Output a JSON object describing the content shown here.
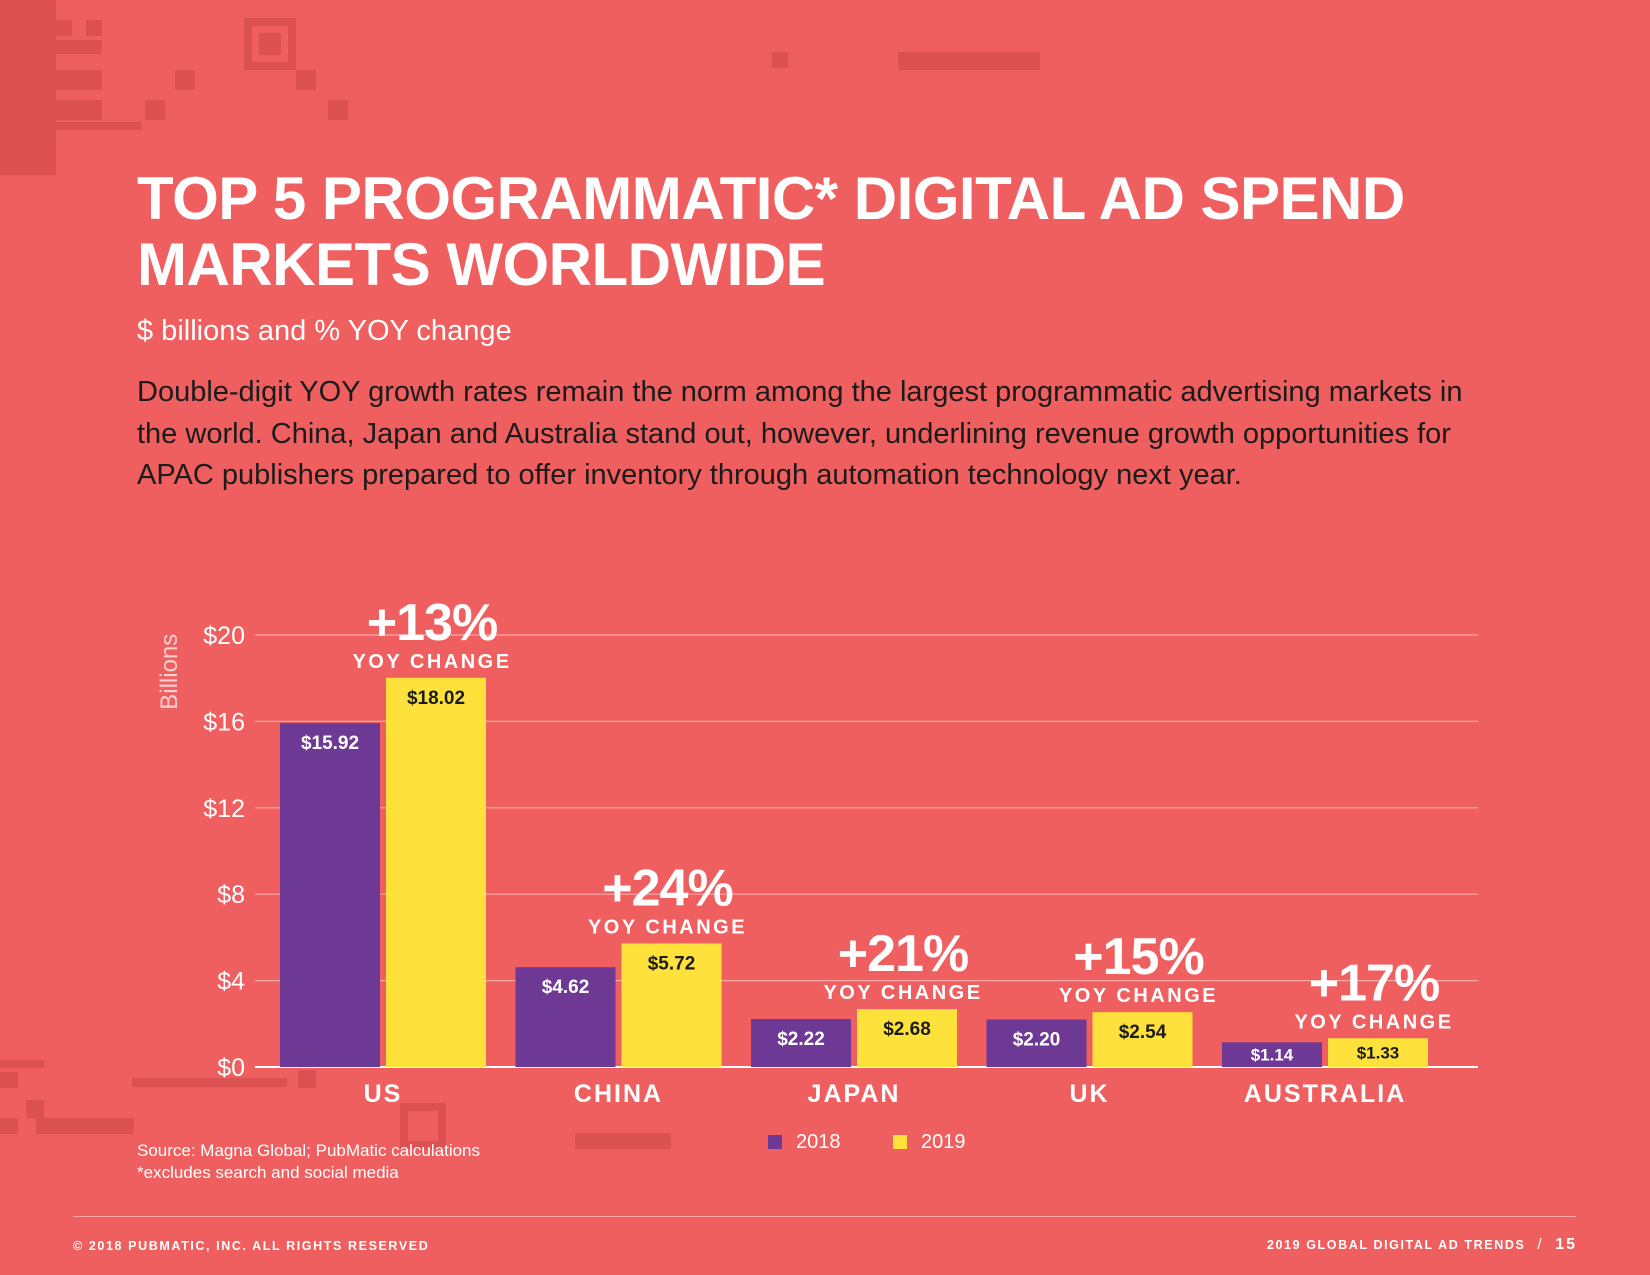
{
  "page": {
    "title": "TOP 5 PROGRAMMATIC* DIGITAL AD SPEND MARKETS WORLDWIDE",
    "subtitle": "$ billions and % YOY change",
    "description": "Double-digit YOY growth rates remain the norm among the largest programmatic advertising markets in the world. China, Japan and Australia stand out, however, underlining revenue growth opportunities for APAC publishers prepared to offer inventory through automation technology next year.",
    "source": "Source: Magna Global; PubMatic calculations",
    "footnote": "*excludes search and social media",
    "copyright": "© 2018 PUBMATIC, INC. ALL RIGHTS RESERVED",
    "report_name": "2019 GLOBAL DIGITAL AD TRENDS",
    "separator": "/",
    "page_number": "15"
  },
  "colors": {
    "background": "#f05f5f",
    "series_2018": "#6e3895",
    "series_2019": "#ffe13b",
    "text_dark": "#1b1b1b",
    "grid": "#f8a9a9"
  },
  "chart_data": {
    "type": "bar",
    "categories": [
      "US",
      "CHINA",
      "JAPAN",
      "UK",
      "AUSTRALIA"
    ],
    "series": [
      {
        "name": "2018",
        "values": [
          15.92,
          4.62,
          2.22,
          2.2,
          1.14
        ],
        "labels": [
          "$15.92",
          "$4.62",
          "$2.22",
          "$2.20",
          "$1.14"
        ]
      },
      {
        "name": "2019",
        "values": [
          18.02,
          5.72,
          2.68,
          2.54,
          1.33
        ],
        "labels": [
          "$18.02",
          "$5.72",
          "$2.68",
          "$2.54",
          "$1.33"
        ]
      }
    ],
    "yoy_change": [
      "+13%",
      "+24%",
      "+21%",
      "+15%",
      "+17%"
    ],
    "yoy_label": "YOY CHANGE",
    "ylabel": "Billions",
    "yticks": [
      "$0",
      "$4",
      "$8",
      "$12",
      "$16",
      "$20"
    ],
    "ylim": [
      0,
      20
    ],
    "grid": true,
    "legend_position": "bottom-center"
  }
}
